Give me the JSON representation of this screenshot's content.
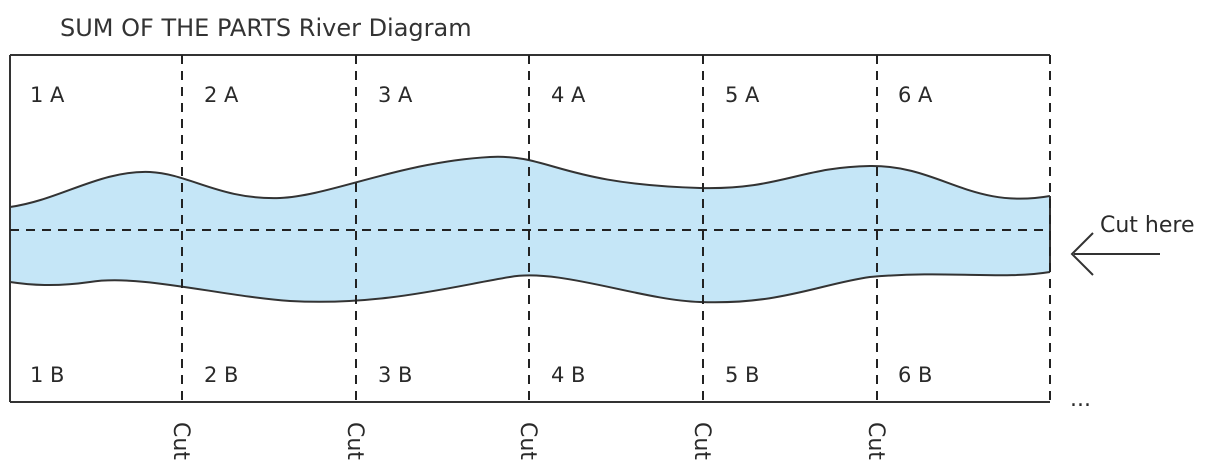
{
  "title": "SUM OF THE PARTS River Diagram",
  "colors": {
    "river_fill": "#c5e6f7",
    "river_edge": "#333333",
    "frame": "#333333",
    "dash": "#222222",
    "text": "#2a2a2a"
  },
  "labels": {
    "top": [
      "1 A",
      "2 A",
      "3 A",
      "4 A",
      "5 A",
      "6 A"
    ],
    "bottom": [
      "1 B",
      "2 B",
      "3 B",
      "4 B",
      "5 B",
      "6 B"
    ]
  },
  "cut_label": "Cut",
  "cut_here_label": "Cut here",
  "ellipsis": "..."
}
